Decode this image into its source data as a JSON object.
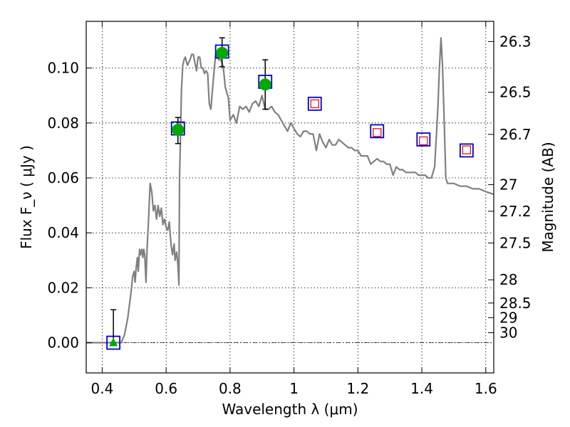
{
  "chart_data": {
    "type": "scatter",
    "xlabel": "Wavelength  λ (μm)",
    "ylabel": "Flux  F_ν  ( μJy )",
    "y2label": "Magnitude (AB)",
    "xlim": [
      0.35,
      1.625
    ],
    "ylim": [
      -0.011,
      0.117
    ],
    "grid": true,
    "x_ticks": [
      {
        "value": 0.4,
        "label": "0.4"
      },
      {
        "value": 0.6,
        "label": "0.6"
      },
      {
        "value": 0.8,
        "label": "0.8"
      },
      {
        "value": 1.0,
        "label": "1"
      },
      {
        "value": 1.2,
        "label": "1.2"
      },
      {
        "value": 1.4,
        "label": "1.4"
      },
      {
        "value": 1.6,
        "label": "1.6"
      }
    ],
    "y_ticks": [
      {
        "value": 0.0,
        "label": "0.00"
      },
      {
        "value": 0.02,
        "label": "0.02"
      },
      {
        "value": 0.04,
        "label": "0.04"
      },
      {
        "value": 0.06,
        "label": "0.06"
      },
      {
        "value": 0.08,
        "label": "0.08"
      },
      {
        "value": 0.1,
        "label": "0.10"
      }
    ],
    "y2_ticks": [
      {
        "mag": 26.3,
        "label": "26.3"
      },
      {
        "mag": 26.5,
        "label": "26.5"
      },
      {
        "mag": 26.7,
        "label": "26.7"
      },
      {
        "mag": 27.0,
        "label": "27"
      },
      {
        "mag": 27.2,
        "label": "27.2"
      },
      {
        "mag": 27.5,
        "label": "27.5"
      },
      {
        "mag": 28.0,
        "label": "28"
      },
      {
        "mag": 28.5,
        "label": "28.5"
      },
      {
        "mag": 29.0,
        "label": "29"
      },
      {
        "mag": 30.0,
        "label": "30"
      }
    ],
    "model_spectrum": {
      "color": "#808080",
      "points": [
        [
          0.35,
          0.0
        ],
        [
          0.46,
          0.0
        ],
        [
          0.47,
          0.003
        ],
        [
          0.48,
          0.009
        ],
        [
          0.49,
          0.018
        ],
        [
          0.495,
          0.024
        ],
        [
          0.5,
          0.026
        ],
        [
          0.503,
          0.022
        ],
        [
          0.507,
          0.028
        ],
        [
          0.51,
          0.031
        ],
        [
          0.513,
          0.026
        ],
        [
          0.517,
          0.034
        ],
        [
          0.52,
          0.032
        ],
        [
          0.524,
          0.034
        ],
        [
          0.527,
          0.031
        ],
        [
          0.53,
          0.034
        ],
        [
          0.533,
          0.032
        ],
        [
          0.537,
          0.022
        ],
        [
          0.54,
          0.033
        ],
        [
          0.545,
          0.045
        ],
        [
          0.55,
          0.058
        ],
        [
          0.555,
          0.055
        ],
        [
          0.56,
          0.048
        ],
        [
          0.565,
          0.05
        ],
        [
          0.57,
          0.045
        ],
        [
          0.575,
          0.05
        ],
        [
          0.58,
          0.046
        ],
        [
          0.585,
          0.049
        ],
        [
          0.59,
          0.043
        ],
        [
          0.595,
          0.045
        ],
        [
          0.6,
          0.042
        ],
        [
          0.605,
          0.041
        ],
        [
          0.61,
          0.044
        ],
        [
          0.615,
          0.036
        ],
        [
          0.62,
          0.032
        ],
        [
          0.625,
          0.036
        ],
        [
          0.628,
          0.03
        ],
        [
          0.633,
          0.033
        ],
        [
          0.637,
          0.028
        ],
        [
          0.64,
          0.021
        ],
        [
          0.642,
          0.06
        ],
        [
          0.645,
          0.075
        ],
        [
          0.648,
          0.092
        ],
        [
          0.652,
          0.101
        ],
        [
          0.656,
          0.103
        ],
        [
          0.66,
          0.104
        ],
        [
          0.664,
          0.102
        ],
        [
          0.667,
          0.101
        ],
        [
          0.67,
          0.102
        ],
        [
          0.675,
          0.103
        ],
        [
          0.68,
          0.105
        ],
        [
          0.685,
          0.105
        ],
        [
          0.69,
          0.102
        ],
        [
          0.695,
          0.099
        ],
        [
          0.7,
          0.104
        ],
        [
          0.705,
          0.104
        ],
        [
          0.71,
          0.1
        ],
        [
          0.715,
          0.1
        ],
        [
          0.72,
          0.098
        ],
        [
          0.725,
          0.099
        ],
        [
          0.73,
          0.098
        ],
        [
          0.735,
          0.087
        ],
        [
          0.74,
          0.085
        ],
        [
          0.745,
          0.092
        ],
        [
          0.75,
          0.099
        ],
        [
          0.755,
          0.105
        ],
        [
          0.76,
          0.104
        ],
        [
          0.765,
          0.103
        ],
        [
          0.77,
          0.103
        ],
        [
          0.775,
          0.102
        ],
        [
          0.78,
          0.099
        ],
        [
          0.785,
          0.093
        ],
        [
          0.79,
          0.091
        ],
        [
          0.795,
          0.089
        ],
        [
          0.8,
          0.081
        ],
        [
          0.81,
          0.083
        ],
        [
          0.82,
          0.08
        ],
        [
          0.83,
          0.086
        ],
        [
          0.84,
          0.085
        ],
        [
          0.85,
          0.086
        ],
        [
          0.86,
          0.084
        ],
        [
          0.87,
          0.087
        ],
        [
          0.88,
          0.088
        ],
        [
          0.89,
          0.086
        ],
        [
          0.9,
          0.09
        ],
        [
          0.91,
          0.085
        ],
        [
          0.92,
          0.085
        ],
        [
          0.93,
          0.086
        ],
        [
          0.94,
          0.084
        ],
        [
          0.95,
          0.083
        ],
        [
          0.96,
          0.081
        ],
        [
          0.97,
          0.079
        ],
        [
          0.98,
          0.077
        ],
        [
          0.99,
          0.08
        ],
        [
          1.0,
          0.078
        ],
        [
          1.01,
          0.076
        ],
        [
          1.02,
          0.075
        ],
        [
          1.03,
          0.077
        ],
        [
          1.04,
          0.077
        ],
        [
          1.05,
          0.076
        ],
        [
          1.06,
          0.076
        ],
        [
          1.07,
          0.07
        ],
        [
          1.08,
          0.076
        ],
        [
          1.09,
          0.073
        ],
        [
          1.1,
          0.071
        ],
        [
          1.11,
          0.074
        ],
        [
          1.12,
          0.072
        ],
        [
          1.13,
          0.072
        ],
        [
          1.14,
          0.074
        ],
        [
          1.15,
          0.073
        ],
        [
          1.16,
          0.072
        ],
        [
          1.17,
          0.071
        ],
        [
          1.18,
          0.071
        ],
        [
          1.19,
          0.07
        ],
        [
          1.2,
          0.07
        ],
        [
          1.21,
          0.068
        ],
        [
          1.22,
          0.068
        ],
        [
          1.23,
          0.068
        ],
        [
          1.24,
          0.065
        ],
        [
          1.25,
          0.066
        ],
        [
          1.26,
          0.067
        ],
        [
          1.27,
          0.066
        ],
        [
          1.28,
          0.066
        ],
        [
          1.29,
          0.065
        ],
        [
          1.3,
          0.065
        ],
        [
          1.31,
          0.061
        ],
        [
          1.32,
          0.064
        ],
        [
          1.33,
          0.063
        ],
        [
          1.34,
          0.063
        ],
        [
          1.35,
          0.062
        ],
        [
          1.36,
          0.062
        ],
        [
          1.37,
          0.062
        ],
        [
          1.38,
          0.062
        ],
        [
          1.39,
          0.061
        ],
        [
          1.4,
          0.061
        ],
        [
          1.41,
          0.061
        ],
        [
          1.42,
          0.06
        ],
        [
          1.43,
          0.06
        ],
        [
          1.44,
          0.064
        ],
        [
          1.45,
          0.085
        ],
        [
          1.455,
          0.1
        ],
        [
          1.46,
          0.111
        ],
        [
          1.465,
          0.1
        ],
        [
          1.47,
          0.08
        ],
        [
          1.475,
          0.06
        ],
        [
          1.48,
          0.058
        ],
        [
          1.49,
          0.058
        ],
        [
          1.5,
          0.058
        ],
        [
          1.52,
          0.057
        ],
        [
          1.54,
          0.057
        ],
        [
          1.56,
          0.056
        ],
        [
          1.58,
          0.056
        ],
        [
          1.6,
          0.055
        ],
        [
          1.625,
          0.054
        ]
      ]
    },
    "model_flux_squares": {
      "color": "#0000cc",
      "points": [
        {
          "x": 0.435,
          "y": 0.0
        },
        {
          "x": 0.637,
          "y": 0.078
        },
        {
          "x": 0.775,
          "y": 0.106
        },
        {
          "x": 0.91,
          "y": 0.095
        },
        {
          "x": 1.065,
          "y": 0.087
        },
        {
          "x": 1.26,
          "y": 0.077
        },
        {
          "x": 1.405,
          "y": 0.074
        },
        {
          "x": 1.54,
          "y": 0.07
        }
      ]
    },
    "detections": {
      "color": "#00aa00",
      "points": [
        {
          "x": 0.637,
          "y": 0.0775,
          "ylow": 0.0725,
          "yhigh": 0.082
        },
        {
          "x": 0.775,
          "y": 0.1055,
          "ylow": 0.1005,
          "yhigh": 0.111
        },
        {
          "x": 0.91,
          "y": 0.094,
          "ylow": 0.085,
          "yhigh": 0.103
        }
      ]
    },
    "non_detection": {
      "color": "#00aa00",
      "point": {
        "x": 0.435,
        "y": 0.0,
        "ylow": 0.0,
        "yhigh": 0.012
      }
    },
    "predicted_flux_small_squares": {
      "color": "#dd0000",
      "points": [
        {
          "x": 1.065,
          "y": 0.087
        },
        {
          "x": 1.26,
          "y": 0.0765
        },
        {
          "x": 1.405,
          "y": 0.0735
        },
        {
          "x": 1.54,
          "y": 0.0702
        }
      ]
    }
  }
}
